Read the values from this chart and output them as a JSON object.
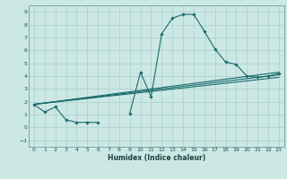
{
  "title": "",
  "xlabel": "Humidex (Indice chaleur)",
  "xlim": [
    -0.5,
    23.5
  ],
  "ylim": [
    -1.5,
    9.5
  ],
  "xticks": [
    0,
    1,
    2,
    3,
    4,
    5,
    6,
    7,
    8,
    9,
    10,
    11,
    12,
    13,
    14,
    15,
    16,
    17,
    18,
    19,
    20,
    21,
    22,
    23
  ],
  "yticks": [
    -1,
    0,
    1,
    2,
    3,
    4,
    5,
    6,
    7,
    8,
    9
  ],
  "bg_color": "#cce8e5",
  "grid_color": "#aacfcc",
  "line_color": "#1a6b6b",
  "main_series_x": [
    0,
    1,
    2,
    3,
    4,
    5,
    6,
    7,
    8,
    9,
    10,
    11,
    12,
    13,
    14,
    15,
    16,
    17,
    18,
    19,
    20,
    21,
    22,
    23
  ],
  "main_series_y": [
    1.8,
    1.2,
    1.6,
    0.6,
    0.4,
    0.4,
    0.4,
    null,
    null,
    1.1,
    4.3,
    2.4,
    7.3,
    8.5,
    8.8,
    8.8,
    7.5,
    6.1,
    5.1,
    4.9,
    4.0,
    3.9,
    4.0,
    4.2
  ],
  "flat_lines": [
    {
      "x0": 0,
      "y0": 1.8,
      "x1": 23,
      "y1": 4.3
    },
    {
      "x0": 0,
      "y0": 1.8,
      "x1": 23,
      "y1": 4.1
    },
    {
      "x0": 0,
      "y0": 1.8,
      "x1": 23,
      "y1": 3.9
    }
  ]
}
